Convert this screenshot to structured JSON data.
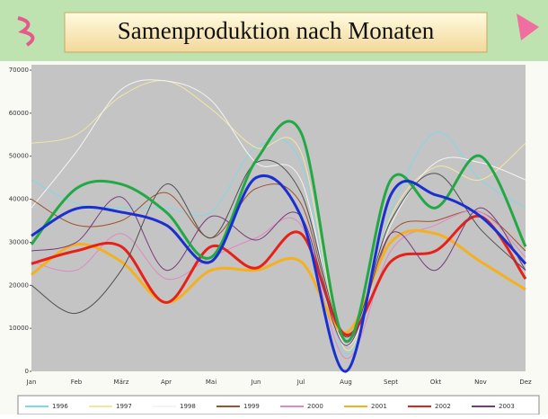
{
  "chart_data": {
    "type": "line",
    "title": "Samenproduktion nach Monaten",
    "categories": [
      "Jan",
      "Feb",
      "März",
      "Apr",
      "Mai",
      "Jun",
      "Jul",
      "Aug",
      "Sept",
      "Okt",
      "Nov",
      "Dez"
    ],
    "ylim": [
      0,
      70000
    ],
    "yticks": [
      0,
      10000,
      20000,
      30000,
      40000,
      50000,
      60000,
      70000
    ],
    "grid": false,
    "series": [
      {
        "name": "1996",
        "color": "#7fd8e8",
        "values": [
          44500,
          39000,
          38000,
          38000,
          37000,
          52000,
          48500,
          4000,
          37000,
          55500,
          44500,
          38000
        ]
      },
      {
        "name": "1997",
        "color": "#f2e7a0",
        "values": [
          53000,
          55000,
          64000,
          67500,
          61000,
          52000,
          51000,
          5000,
          36000,
          47500,
          44500,
          53000
        ]
      },
      {
        "name": "1998",
        "color": "#f4f4f4",
        "values": [
          38000,
          51000,
          65500,
          67500,
          63000,
          48500,
          44500,
          6000,
          34000,
          48500,
          48500,
          44500
        ]
      },
      {
        "name": "1999",
        "color": "#a0522d",
        "values": [
          40000,
          34000,
          35000,
          41500,
          31000,
          42500,
          39000,
          7000,
          32000,
          35000,
          37000,
          28000
        ]
      },
      {
        "name": "2000",
        "color": "#e088c0",
        "values": [
          25500,
          23500,
          32000,
          21500,
          26500,
          31000,
          34000,
          3000,
          28000,
          34000,
          37000,
          26500
        ]
      },
      {
        "name": "2001",
        "color": "#f5b020",
        "width": 3,
        "values": [
          22500,
          29500,
          25500,
          16000,
          23500,
          23500,
          25500,
          9000,
          30000,
          32000,
          25500,
          19000
        ]
      },
      {
        "name": "2002",
        "color": "#e8201a",
        "width": 3,
        "values": [
          25000,
          28000,
          29000,
          16000,
          29000,
          24000,
          32000,
          8500,
          25500,
          28000,
          36000,
          21500
        ]
      },
      {
        "name": "2003",
        "color": "#7a3a7a",
        "values": [
          28000,
          30000,
          40500,
          23500,
          36000,
          30500,
          36000,
          6000,
          32000,
          23500,
          38000,
          23500
        ]
      },
      {
        "color": "#505050",
        "values": [
          20000,
          13500,
          23500,
          43500,
          31000,
          48500,
          41500,
          8000,
          35000,
          46000,
          33000,
          23500
        ]
      },
      {
        "color": "#22a844",
        "width": 3,
        "values": [
          29500,
          42500,
          43500,
          37000,
          26500,
          49000,
          55500,
          7000,
          44500,
          38000,
          50000,
          29000
        ]
      },
      {
        "color": "#1a2fd0",
        "width": 3,
        "values": [
          31500,
          37800,
          37000,
          34000,
          25500,
          45000,
          36000,
          0,
          41000,
          41000,
          36000,
          25000
        ]
      }
    ]
  }
}
